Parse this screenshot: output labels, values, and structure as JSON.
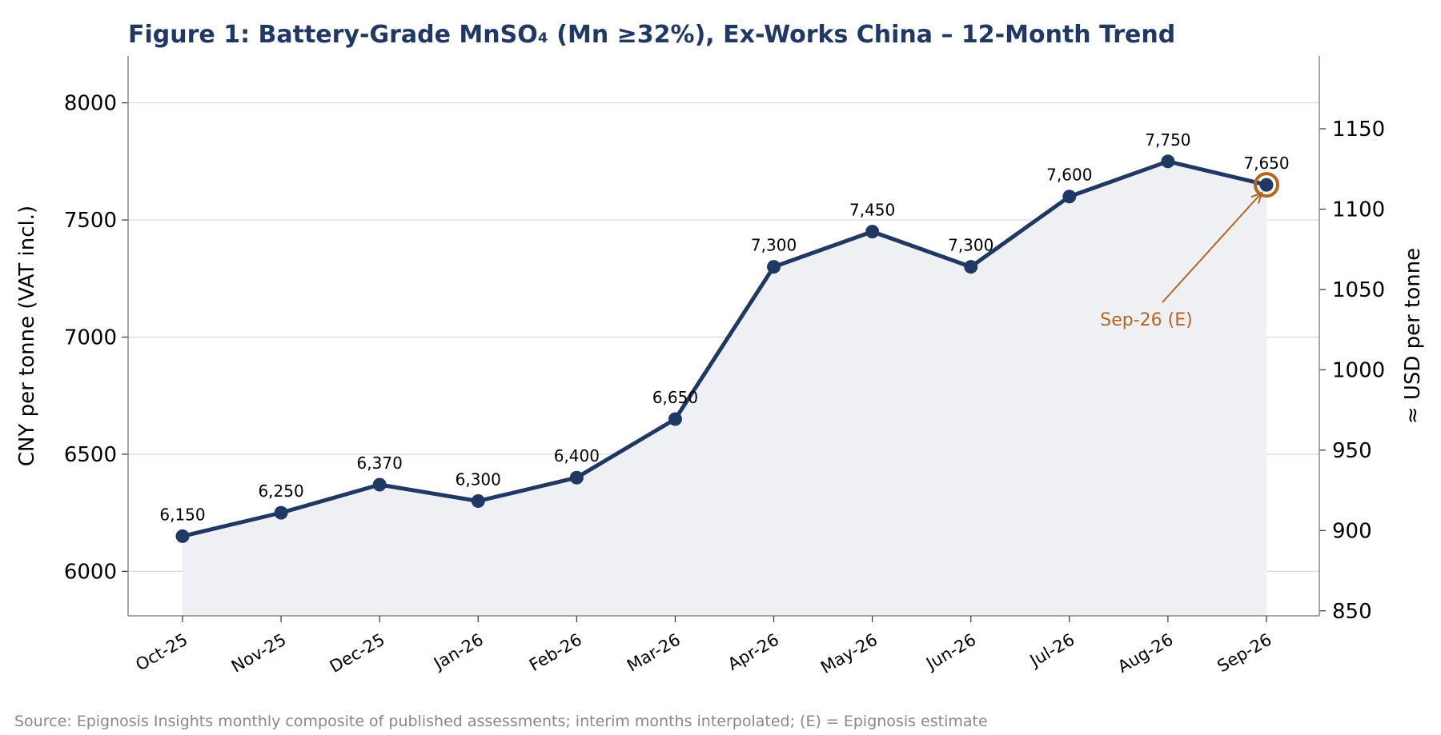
{
  "colors": {
    "series": "#1f3864",
    "title": "#1f3864",
    "accent": "#b5651d",
    "fill": "#eef0f4",
    "grid": "#d9d9d9",
    "axis": "#8a8a8a",
    "source": "#888888"
  },
  "chart_data": {
    "type": "line",
    "title": "Figure 1: Battery-Grade MnSO₄ (Mn ≥32%), Ex-Works China – 12-Month Trend",
    "categories": [
      "Oct-25",
      "Nov-25",
      "Dec-25",
      "Jan-26",
      "Feb-26",
      "Mar-26",
      "Apr-26",
      "May-26",
      "Jun-26",
      "Jul-26",
      "Aug-26",
      "Sep-26"
    ],
    "series": [
      {
        "values": [
          6150,
          6250,
          6370,
          6300,
          6400,
          6650,
          7300,
          7450,
          7300,
          7600,
          7750,
          7650
        ]
      }
    ],
    "data_labels": [
      "6,150",
      "6,250",
      "6,370",
      "6,300",
      "6,400",
      "6,650",
      "7,300",
      "7,450",
      "7,300",
      "7,600",
      "7,750",
      "7,650"
    ],
    "ylabel": "CNY per tonne (VAT incl.)",
    "ylim": [
      5810,
      8200
    ],
    "yticks": [
      6000,
      6500,
      7000,
      7500,
      8000
    ],
    "y2label": "≈ USD per tonne",
    "y2lim": [
      846.9,
      1195.3
    ],
    "y2ticks": [
      850,
      900,
      950,
      1000,
      1050,
      1100,
      1150
    ],
    "grid": true,
    "fill_under_line": true,
    "annotation": {
      "text": "Sep-26 (E)",
      "target_category": "Sep-26"
    },
    "source": "Source: Epignosis Insights monthly composite of published assessments; interim months interpolated; (E) = Epignosis estimate"
  }
}
